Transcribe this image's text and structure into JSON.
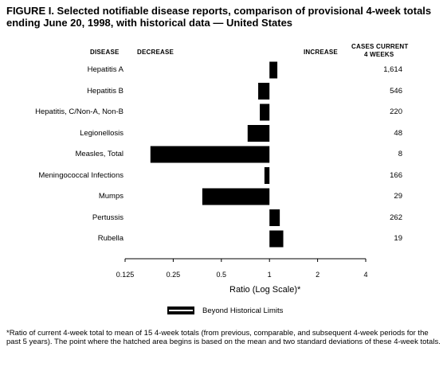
{
  "title": "FIGURE I. Selected notifiable disease reports, comparison of provisional 4-week totals ending June 20, 1998, with historical data — United States",
  "headers": {
    "disease": "DISEASE",
    "decrease": "DECREASE",
    "increase": "INCREASE",
    "cases_line1": "CASES CURRENT",
    "cases_line2": "4 WEEKS"
  },
  "chart_data": {
    "type": "bar",
    "orientation": "horizontal",
    "xscale": "log",
    "baseline": 1,
    "xlim": [
      0.125,
      4
    ],
    "xticks": [
      "0.125",
      "0.25",
      "0.5",
      "1",
      "2",
      "4"
    ],
    "xtick_values": [
      0.125,
      0.25,
      0.5,
      1,
      2,
      4
    ],
    "xlabel": "Ratio (Log Scale)*",
    "categories": [
      "Hepatitis A",
      "Hepatitis B",
      "Hepatitis, C/Non-A, Non-B",
      "Legionellosis",
      "Measles, Total",
      "Meningococcal Infections",
      "Mumps",
      "Pertussis",
      "Rubella"
    ],
    "values": [
      1.12,
      0.85,
      0.87,
      0.73,
      0.18,
      0.93,
      0.38,
      1.16,
      1.22
    ],
    "cases": [
      "1,614",
      "546",
      "220",
      "48",
      "8",
      "166",
      "29",
      "262",
      "19"
    ],
    "legend": "Beyond Historical Limits",
    "bar_color": "#000000"
  },
  "footnote": "*Ratio of current 4-week total to mean of 15 4-week totals (from previous, comparable, and subsequent 4-week periods for the past 5 years). The point where the hatched area begins is based on the mean and two standard deviations of these 4-week totals."
}
